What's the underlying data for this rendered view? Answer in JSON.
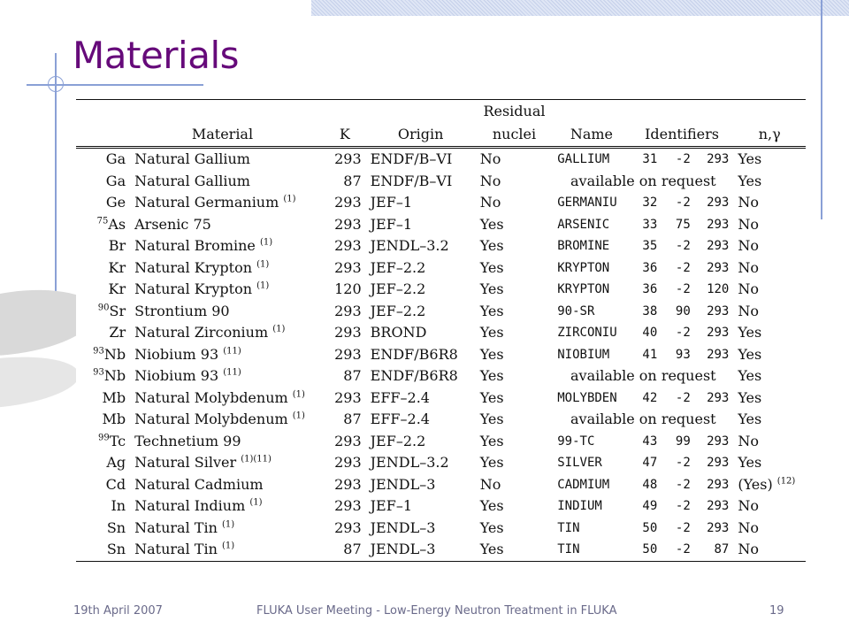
{
  "slide": {
    "title": "Materials",
    "footer_left": "19th April 2007",
    "footer_center": "FLUKA User Meeting - Low-Energy Neutron Treatment in FLUKA",
    "footer_right": "19"
  },
  "table": {
    "headers": {
      "material": "Material",
      "k": "K",
      "origin": "Origin",
      "residual_line1": "Residual",
      "residual_line2": "nuclei",
      "name": "Name",
      "identifiers": "Identifiers",
      "ngamma": "n,γ"
    },
    "rows": [
      {
        "iso": "",
        "sym": "Ga",
        "material": "Natural Gallium",
        "mat_note": "",
        "k": "293",
        "origin": "ENDF/B–VI",
        "residual": "No",
        "name": "GALLIUM",
        "id1": "31",
        "id2": "-2",
        "id3": "293",
        "avail": "",
        "ngamma": "Yes",
        "ng_note": ""
      },
      {
        "iso": "",
        "sym": "Ga",
        "material": "Natural Gallium",
        "mat_note": "",
        "k": "87",
        "origin": "ENDF/B–VI",
        "residual": "No",
        "name": "",
        "id1": "",
        "id2": "",
        "id3": "",
        "avail": "available on request",
        "ngamma": "Yes",
        "ng_note": ""
      },
      {
        "iso": "",
        "sym": "Ge",
        "material": "Natural Germanium",
        "mat_note": "(1)",
        "k": "293",
        "origin": "JEF–1",
        "residual": "No",
        "name": "GERMANIU",
        "id1": "32",
        "id2": "-2",
        "id3": "293",
        "avail": "",
        "ngamma": "No",
        "ng_note": ""
      },
      {
        "iso": "75",
        "sym": "As",
        "material": "Arsenic 75",
        "mat_note": "",
        "k": "293",
        "origin": "JEF–1",
        "residual": "Yes",
        "name": "ARSENIC",
        "id1": "33",
        "id2": "75",
        "id3": "293",
        "avail": "",
        "ngamma": "No",
        "ng_note": ""
      },
      {
        "iso": "",
        "sym": "Br",
        "material": "Natural Bromine",
        "mat_note": "(1)",
        "k": "293",
        "origin": "JENDL–3.2",
        "residual": "Yes",
        "name": "BROMINE",
        "id1": "35",
        "id2": "-2",
        "id3": "293",
        "avail": "",
        "ngamma": "No",
        "ng_note": ""
      },
      {
        "iso": "",
        "sym": "Kr",
        "material": "Natural Krypton",
        "mat_note": "(1)",
        "k": "293",
        "origin": "JEF–2.2",
        "residual": "Yes",
        "name": "KRYPTON",
        "id1": "36",
        "id2": "-2",
        "id3": "293",
        "avail": "",
        "ngamma": "No",
        "ng_note": ""
      },
      {
        "iso": "",
        "sym": "Kr",
        "material": "Natural Krypton",
        "mat_note": "(1)",
        "k": "120",
        "origin": "JEF–2.2",
        "residual": "Yes",
        "name": "KRYPTON",
        "id1": "36",
        "id2": "-2",
        "id3": "120",
        "avail": "",
        "ngamma": "No",
        "ng_note": ""
      },
      {
        "iso": "90",
        "sym": "Sr",
        "material": "Strontium 90",
        "mat_note": "",
        "k": "293",
        "origin": "JEF–2.2",
        "residual": "Yes",
        "name": "90-SR",
        "id1": "38",
        "id2": "90",
        "id3": "293",
        "avail": "",
        "ngamma": "No",
        "ng_note": ""
      },
      {
        "iso": "",
        "sym": "Zr",
        "material": "Natural Zirconium",
        "mat_note": "(1)",
        "k": "293",
        "origin": "BROND",
        "residual": "Yes",
        "name": "ZIRCONIU",
        "id1": "40",
        "id2": "-2",
        "id3": "293",
        "avail": "",
        "ngamma": "Yes",
        "ng_note": ""
      },
      {
        "iso": "93",
        "sym": "Nb",
        "material": "Niobium 93",
        "mat_note": "(11)",
        "k": "293",
        "origin": "ENDF/B6R8",
        "residual": "Yes",
        "name": "NIOBIUM",
        "id1": "41",
        "id2": "93",
        "id3": "293",
        "avail": "",
        "ngamma": "Yes",
        "ng_note": ""
      },
      {
        "iso": "93",
        "sym": "Nb",
        "material": "Niobium 93",
        "mat_note": "(11)",
        "k": "87",
        "origin": "ENDF/B6R8",
        "residual": "Yes",
        "name": "",
        "id1": "",
        "id2": "",
        "id3": "",
        "avail": "available on request",
        "ngamma": "Yes",
        "ng_note": ""
      },
      {
        "iso": "",
        "sym": "Mb",
        "material": "Natural Molybdenum",
        "mat_note": "(1)",
        "k": "293",
        "origin": "EFF–2.4",
        "residual": "Yes",
        "name": "MOLYBDEN",
        "id1": "42",
        "id2": "-2",
        "id3": "293",
        "avail": "",
        "ngamma": "Yes",
        "ng_note": ""
      },
      {
        "iso": "",
        "sym": "Mb",
        "material": "Natural Molybdenum",
        "mat_note": "(1)",
        "k": "87",
        "origin": "EFF–2.4",
        "residual": "Yes",
        "name": "",
        "id1": "",
        "id2": "",
        "id3": "",
        "avail": "available on request",
        "ngamma": "Yes",
        "ng_note": ""
      },
      {
        "iso": "99",
        "sym": "Tc",
        "material": "Technetium 99",
        "mat_note": "",
        "k": "293",
        "origin": "JEF–2.2",
        "residual": "Yes",
        "name": "99-TC",
        "id1": "43",
        "id2": "99",
        "id3": "293",
        "avail": "",
        "ngamma": "No",
        "ng_note": ""
      },
      {
        "iso": "",
        "sym": "Ag",
        "material": "Natural Silver",
        "mat_note": "(1)(11)",
        "k": "293",
        "origin": "JENDL–3.2",
        "residual": "Yes",
        "name": "SILVER",
        "id1": "47",
        "id2": "-2",
        "id3": "293",
        "avail": "",
        "ngamma": "Yes",
        "ng_note": ""
      },
      {
        "iso": "",
        "sym": "Cd",
        "material": "Natural Cadmium",
        "mat_note": "",
        "k": "293",
        "origin": "JENDL–3",
        "residual": "No",
        "name": "CADMIUM",
        "id1": "48",
        "id2": "-2",
        "id3": "293",
        "avail": "",
        "ngamma": "(Yes)",
        "ng_note": "(12)"
      },
      {
        "iso": "",
        "sym": "In",
        "material": "Natural Indium",
        "mat_note": "(1)",
        "k": "293",
        "origin": "JEF–1",
        "residual": "Yes",
        "name": "INDIUM",
        "id1": "49",
        "id2": "-2",
        "id3": "293",
        "avail": "",
        "ngamma": "No",
        "ng_note": ""
      },
      {
        "iso": "",
        "sym": "Sn",
        "material": "Natural Tin",
        "mat_note": "(1)",
        "k": "293",
        "origin": "JENDL–3",
        "residual": "Yes",
        "name": "TIN",
        "id1": "50",
        "id2": "-2",
        "id3": "293",
        "avail": "",
        "ngamma": "No",
        "ng_note": ""
      },
      {
        "iso": "",
        "sym": "Sn",
        "material": "Natural Tin",
        "mat_note": "(1)",
        "k": "87",
        "origin": "JENDL–3",
        "residual": "Yes",
        "name": "TIN",
        "id1": "50",
        "id2": "-2",
        "id3": "87",
        "avail": "",
        "ngamma": "No",
        "ng_note": ""
      }
    ]
  }
}
